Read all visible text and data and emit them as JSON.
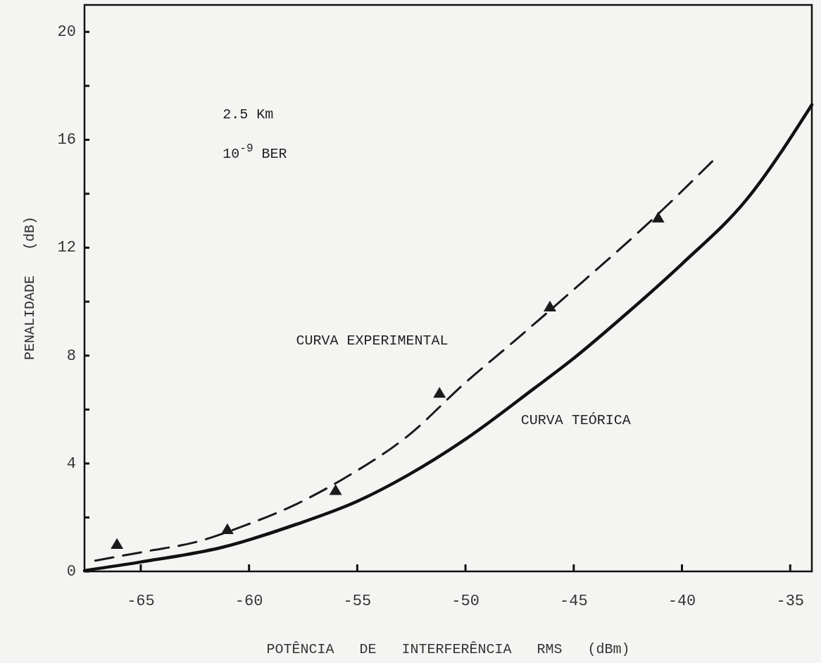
{
  "chart_data": {
    "type": "line",
    "xlabel": "POTÊNCIA   DE   INTERFERÊNCIA   RMS   (dBm)",
    "ylabel": "PENALIDADE   (dB)",
    "annotations": [
      "2.5 Km",
      "10$^{-9}$ BER"
    ],
    "xlim": [
      -67.6,
      -34.0
    ],
    "ylim": [
      0,
      21
    ],
    "xticks": [
      -65,
      -60,
      -55,
      -50,
      -45,
      -40,
      -35
    ],
    "yticks": [
      0,
      {
        "value": 2,
        "label": null
      },
      4,
      {
        "value": 6,
        "label": null
      },
      8,
      {
        "value": 10,
        "label": null
      },
      12,
      {
        "value": 14,
        "label": null
      },
      16,
      {
        "value": 18,
        "label": null
      },
      20
    ],
    "grid": false,
    "series": [
      {
        "name": "CURVA EXPERIMENTAL",
        "color": "#1a1a1a",
        "line_style": "dashed",
        "marker": "none",
        "x": [
          -67.1,
          -64.7,
          -62.4,
          -60.2,
          -57.8,
          -55.5,
          -52.7,
          -50.0,
          -47.8,
          -44.5,
          -41.7,
          -38.6
        ],
        "values": [
          0.4,
          0.75,
          1.1,
          1.7,
          2.5,
          3.5,
          5.0,
          7.0,
          8.5,
          10.8,
          12.8,
          15.2
        ]
      },
      {
        "type": "scatter",
        "color": "#1a1a1a",
        "marker": "triangle",
        "x": [
          -66.1,
          -61.0,
          -56.0,
          -51.2,
          -46.1,
          -41.1
        ],
        "values": [
          1.0,
          1.55,
          3.0,
          6.6,
          9.8,
          13.1
        ]
      },
      {
        "name": "CURVA TEÓRICA",
        "color": "#111111",
        "line_style": "solid",
        "marker": "none",
        "x": [
          -67.6,
          -65.0,
          -61.2,
          -57.8,
          -55.0,
          -52.7,
          -50.0,
          -46.8,
          -45.0,
          -42.5,
          -40.0,
          -37.0,
          -34.0
        ],
        "values": [
          0.03,
          0.35,
          0.9,
          1.75,
          2.6,
          3.55,
          4.9,
          6.8,
          7.9,
          9.6,
          11.4,
          13.8,
          17.3
        ]
      }
    ]
  }
}
